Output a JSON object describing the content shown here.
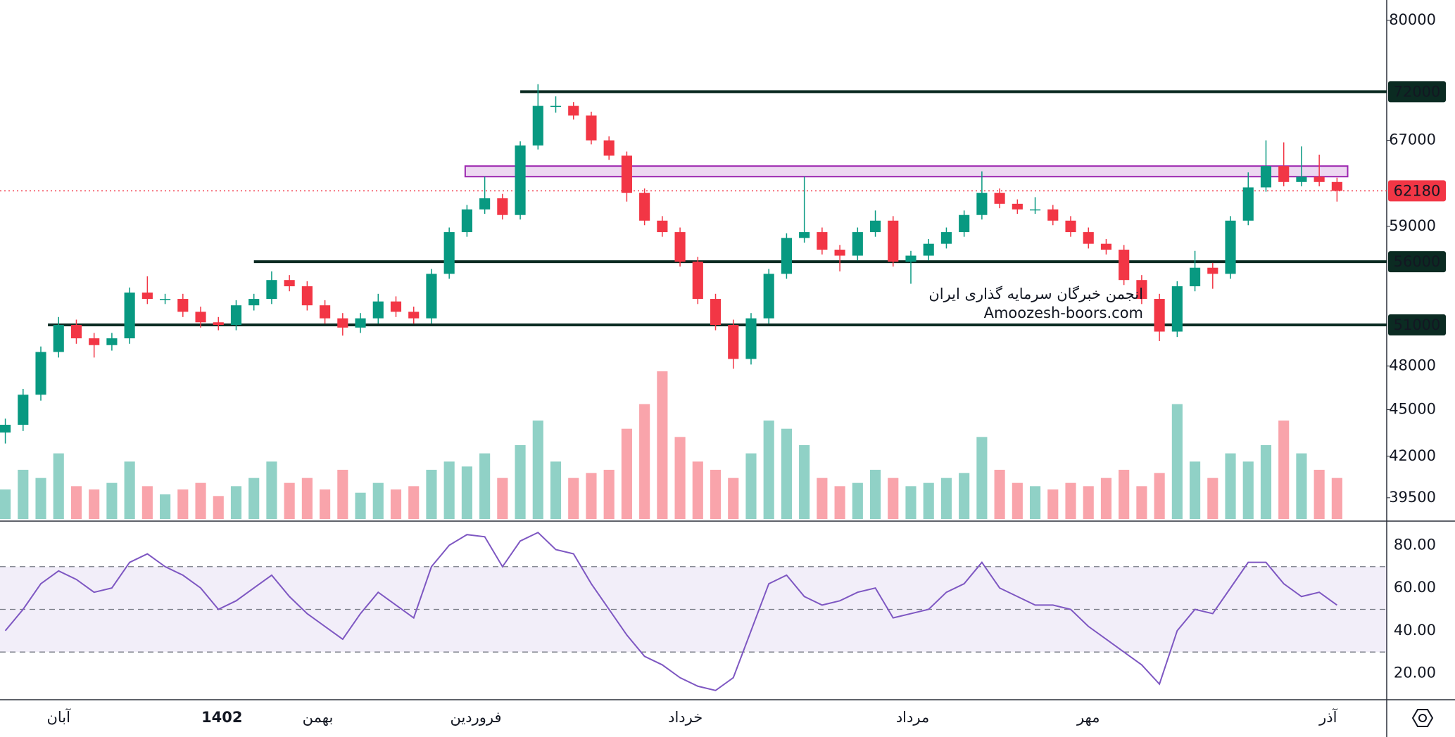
{
  "chart_data": {
    "type": "candlestick",
    "log_scale": true,
    "ylim": [
      38200,
      82450
    ],
    "yticks": [
      39500,
      42000,
      45000,
      48000,
      59000,
      67000,
      80000
    ],
    "xlim": [
      -0.3,
      77.8
    ],
    "xticks": [
      {
        "value": 3,
        "label": "آبان"
      },
      {
        "value": 12.2,
        "label": "1402",
        "bold": true
      },
      {
        "value": 17.6,
        "label": "بهمن"
      },
      {
        "value": 26.5,
        "label": "فروردین"
      },
      {
        "value": 38.3,
        "label": "خرداد"
      },
      {
        "value": 51.1,
        "label": "مرداد"
      },
      {
        "value": 61,
        "label": "مهر"
      },
      {
        "value": 74.5,
        "label": "آذر"
      }
    ],
    "up_color": "#089981",
    "down_color": "#f23645",
    "ohlc": [
      [
        43500,
        44400,
        42800,
        44000
      ],
      [
        44000,
        46400,
        43600,
        46000
      ],
      [
        46000,
        49400,
        45600,
        49000
      ],
      [
        49000,
        51600,
        48600,
        51000
      ],
      [
        51000,
        51400,
        49600,
        50000
      ],
      [
        50000,
        50400,
        48600,
        49500
      ],
      [
        49500,
        50400,
        49100,
        50000
      ],
      [
        50000,
        53900,
        49600,
        53500
      ],
      [
        53500,
        54800,
        52600,
        53000
      ],
      [
        53000,
        53400,
        52600,
        53000
      ],
      [
        53000,
        53400,
        51600,
        52000
      ],
      [
        52000,
        52400,
        50800,
        51200
      ],
      [
        51200,
        51600,
        50600,
        51000
      ],
      [
        51000,
        52900,
        50600,
        52500
      ],
      [
        52500,
        53400,
        52100,
        53000
      ],
      [
        53000,
        55200,
        52600,
        54500
      ],
      [
        54500,
        54900,
        53600,
        54000
      ],
      [
        54000,
        54400,
        52100,
        52500
      ],
      [
        52500,
        52900,
        51100,
        51500
      ],
      [
        51500,
        51900,
        50200,
        50800
      ],
      [
        50800,
        51900,
        50400,
        51500
      ],
      [
        51500,
        53400,
        51100,
        52800
      ],
      [
        52800,
        53200,
        51600,
        52000
      ],
      [
        52000,
        52400,
        51100,
        51500
      ],
      [
        51500,
        55400,
        51100,
        55000
      ],
      [
        55000,
        58900,
        54600,
        58500
      ],
      [
        58500,
        60900,
        58100,
        60500
      ],
      [
        60500,
        63500,
        60100,
        61500
      ],
      [
        61500,
        61900,
        59600,
        60000
      ],
      [
        60000,
        66900,
        59600,
        66500
      ],
      [
        66500,
        72800,
        66100,
        70500
      ],
      [
        70500,
        71500,
        69800,
        70500
      ],
      [
        70500,
        70900,
        69100,
        69500
      ],
      [
        69500,
        69900,
        66600,
        67000
      ],
      [
        67000,
        67400,
        65100,
        65500
      ],
      [
        65500,
        65900,
        61200,
        62000
      ],
      [
        62000,
        62400,
        59100,
        59500
      ],
      [
        59500,
        59900,
        58100,
        58500
      ],
      [
        58500,
        58900,
        55600,
        56000
      ],
      [
        56000,
        56400,
        52600,
        53000
      ],
      [
        53000,
        53400,
        50600,
        51000
      ],
      [
        51000,
        51400,
        47800,
        48500
      ],
      [
        48500,
        51900,
        48100,
        51500
      ],
      [
        51500,
        55400,
        51100,
        55000
      ],
      [
        55000,
        58400,
        54600,
        58000
      ],
      [
        58000,
        63500,
        57600,
        58500
      ],
      [
        58500,
        58900,
        56600,
        57000
      ],
      [
        57000,
        57400,
        55200,
        56500
      ],
      [
        56500,
        58900,
        56100,
        58500
      ],
      [
        58500,
        60400,
        58100,
        59500
      ],
      [
        59500,
        59900,
        55600,
        56000
      ],
      [
        56000,
        56900,
        54200,
        56500
      ],
      [
        56500,
        57900,
        56100,
        57500
      ],
      [
        57500,
        58900,
        57100,
        58500
      ],
      [
        58500,
        60400,
        58100,
        60000
      ],
      [
        60000,
        64000,
        59600,
        62000
      ],
      [
        62000,
        62400,
        60600,
        61000
      ],
      [
        61000,
        61400,
        60100,
        60500
      ],
      [
        60500,
        61600,
        60100,
        60500
      ],
      [
        60500,
        60900,
        59100,
        59500
      ],
      [
        59500,
        59900,
        58100,
        58500
      ],
      [
        58500,
        58900,
        57100,
        57500
      ],
      [
        57500,
        57900,
        56600,
        57000
      ],
      [
        57000,
        57400,
        54100,
        54500
      ],
      [
        54500,
        54900,
        52600,
        53000
      ],
      [
        53000,
        53400,
        49800,
        50500
      ],
      [
        50500,
        54400,
        50100,
        54000
      ],
      [
        54000,
        56900,
        53600,
        55500
      ],
      [
        55500,
        55900,
        53800,
        55000
      ],
      [
        55000,
        59900,
        54600,
        59500
      ],
      [
        59500,
        63900,
        59100,
        62500
      ],
      [
        62500,
        67000,
        62100,
        64500
      ],
      [
        64500,
        66800,
        62600,
        63000
      ],
      [
        63000,
        66400,
        62600,
        63500
      ],
      [
        63500,
        65600,
        62600,
        63000
      ],
      [
        63000,
        63400,
        61200,
        62180
      ]
    ],
    "volume": [
      18,
      30,
      25,
      40,
      20,
      18,
      22,
      35,
      20,
      15,
      18,
      22,
      14,
      20,
      25,
      35,
      22,
      25,
      18,
      30,
      16,
      22,
      18,
      20,
      30,
      35,
      32,
      40,
      25,
      45,
      60,
      35,
      25,
      28,
      30,
      55,
      70,
      90,
      50,
      35,
      30,
      25,
      40,
      60,
      55,
      45,
      25,
      20,
      22,
      30,
      25,
      20,
      22,
      25,
      28,
      50,
      30,
      22,
      20,
      18,
      22,
      20,
      25,
      30,
      20,
      28,
      70,
      35,
      25,
      40,
      35,
      45,
      60,
      40,
      30,
      25
    ],
    "levels": [
      {
        "value": 72000,
        "color": "#0b2b22"
      },
      {
        "value": 56000,
        "color": "#0b2b22"
      },
      {
        "value": 51000,
        "color": "#0b2b22"
      }
    ],
    "last_price": {
      "value": 62180,
      "color": "#f23645"
    },
    "zone": {
      "range": [
        63500,
        64500
      ],
      "color": "#9c27b0"
    },
    "watermark": [
      "انجمن خبرگان سرمایه گذاری ایران",
      "Amoozesh-boors.com"
    ],
    "rsi": {
      "values": [
        40,
        50,
        62,
        68,
        64,
        58,
        60,
        72,
        76,
        70,
        66,
        60,
        50,
        54,
        60,
        66,
        56,
        48,
        42,
        36,
        48,
        58,
        52,
        46,
        70,
        80,
        85,
        84,
        70,
        82,
        86,
        78,
        76,
        62,
        50,
        38,
        28,
        24,
        18,
        14,
        12,
        18,
        40,
        62,
        66,
        56,
        52,
        54,
        58,
        60,
        46,
        48,
        50,
        58,
        62,
        72,
        60,
        56,
        52,
        52,
        50,
        42,
        36,
        30,
        24,
        15,
        40,
        50,
        48,
        60,
        72,
        72,
        62,
        56,
        58,
        52
      ],
      "color": "#7e57c2",
      "ylim": [
        8,
        91
      ],
      "yticks": [
        {
          "value": 20,
          "label": "20.00"
        },
        {
          "value": 40,
          "label": "40.00"
        },
        {
          "value": 60,
          "label": "60.00"
        },
        {
          "value": 80,
          "label": "80.00"
        }
      ],
      "band": [
        30,
        70
      ],
      "mid": 50
    }
  }
}
